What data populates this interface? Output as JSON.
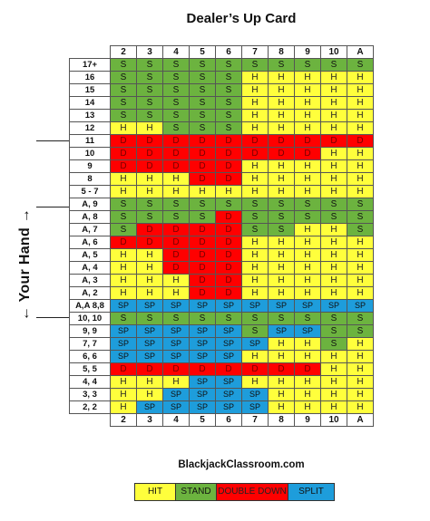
{
  "title": "Dealer’s Up Card",
  "side_label": "← Your Hand →",
  "site": "BlackjackClassroom.com",
  "columns": [
    "2",
    "3",
    "4",
    "5",
    "6",
    "7",
    "8",
    "9",
    "10",
    "A"
  ],
  "colors": {
    "H": "#ffff3c",
    "S": "#6cb33f",
    "D": "#ff0000",
    "SP": "#1e9ddb"
  },
  "rows": [
    {
      "label": "17+",
      "cells": [
        "S",
        "S",
        "S",
        "S",
        "S",
        "S",
        "S",
        "S",
        "S",
        "S"
      ]
    },
    {
      "label": "16",
      "cells": [
        "S",
        "S",
        "S",
        "S",
        "S",
        "H",
        "H",
        "H",
        "H",
        "H"
      ]
    },
    {
      "label": "15",
      "cells": [
        "S",
        "S",
        "S",
        "S",
        "S",
        "H",
        "H",
        "H",
        "H",
        "H"
      ]
    },
    {
      "label": "14",
      "cells": [
        "S",
        "S",
        "S",
        "S",
        "S",
        "H",
        "H",
        "H",
        "H",
        "H"
      ]
    },
    {
      "label": "13",
      "cells": [
        "S",
        "S",
        "S",
        "S",
        "S",
        "H",
        "H",
        "H",
        "H",
        "H"
      ]
    },
    {
      "label": "12",
      "cells": [
        "H",
        "H",
        "S",
        "S",
        "S",
        "H",
        "H",
        "H",
        "H",
        "H"
      ]
    },
    {
      "label": "11",
      "cells": [
        "D",
        "D",
        "D",
        "D",
        "D",
        "D",
        "D",
        "D",
        "D",
        "D"
      ]
    },
    {
      "label": "10",
      "cells": [
        "D",
        "D",
        "D",
        "D",
        "D",
        "D",
        "D",
        "D",
        "H",
        "H"
      ]
    },
    {
      "label": "9",
      "cells": [
        "D",
        "D",
        "D",
        "D",
        "D",
        "H",
        "H",
        "H",
        "H",
        "H"
      ]
    },
    {
      "label": "8",
      "cells": [
        "H",
        "H",
        "H",
        "D",
        "D",
        "H",
        "H",
        "H",
        "H",
        "H"
      ]
    },
    {
      "label": "5 - 7",
      "cells": [
        "H",
        "H",
        "H",
        "H",
        "H",
        "H",
        "H",
        "H",
        "H",
        "H"
      ]
    },
    {
      "label": "A, 9",
      "cells": [
        "S",
        "S",
        "S",
        "S",
        "S",
        "S",
        "S",
        "S",
        "S",
        "S"
      ]
    },
    {
      "label": "A, 8",
      "cells": [
        "S",
        "S",
        "S",
        "S",
        "D",
        "S",
        "S",
        "S",
        "S",
        "S"
      ]
    },
    {
      "label": "A, 7",
      "cells": [
        "S",
        "D",
        "D",
        "D",
        "D",
        "S",
        "S",
        "H",
        "H",
        "S"
      ]
    },
    {
      "label": "A, 6",
      "cells": [
        "D",
        "D",
        "D",
        "D",
        "D",
        "H",
        "H",
        "H",
        "H",
        "H"
      ]
    },
    {
      "label": "A, 5",
      "cells": [
        "H",
        "H",
        "D",
        "D",
        "D",
        "H",
        "H",
        "H",
        "H",
        "H"
      ]
    },
    {
      "label": "A, 4",
      "cells": [
        "H",
        "H",
        "D",
        "D",
        "D",
        "H",
        "H",
        "H",
        "H",
        "H"
      ]
    },
    {
      "label": "A, 3",
      "cells": [
        "H",
        "H",
        "H",
        "D",
        "D",
        "H",
        "H",
        "H",
        "H",
        "H"
      ]
    },
    {
      "label": "A, 2",
      "cells": [
        "H",
        "H",
        "H",
        "D",
        "D",
        "H",
        "H",
        "H",
        "H",
        "H"
      ]
    },
    {
      "label": "A,A 8,8",
      "cells": [
        "SP",
        "SP",
        "SP",
        "SP",
        "SP",
        "SP",
        "SP",
        "SP",
        "SP",
        "SP"
      ]
    },
    {
      "label": "10, 10",
      "cells": [
        "S",
        "S",
        "S",
        "S",
        "S",
        "S",
        "S",
        "S",
        "S",
        "S"
      ]
    },
    {
      "label": "9, 9",
      "cells": [
        "SP",
        "SP",
        "SP",
        "SP",
        "SP",
        "S",
        "SP",
        "SP",
        "S",
        "S"
      ]
    },
    {
      "label": "7, 7",
      "cells": [
        "SP",
        "SP",
        "SP",
        "SP",
        "SP",
        "SP",
        "H",
        "H",
        "S",
        "H"
      ]
    },
    {
      "label": "6, 6",
      "cells": [
        "SP",
        "SP",
        "SP",
        "SP",
        "SP",
        "H",
        "H",
        "H",
        "H",
        "H"
      ]
    },
    {
      "label": "5, 5",
      "cells": [
        "D",
        "D",
        "D",
        "D",
        "D",
        "D",
        "D",
        "D",
        "H",
        "H"
      ]
    },
    {
      "label": "4, 4",
      "cells": [
        "H",
        "H",
        "H",
        "SP",
        "SP",
        "H",
        "H",
        "H",
        "H",
        "H"
      ]
    },
    {
      "label": "3, 3",
      "cells": [
        "H",
        "H",
        "SP",
        "SP",
        "SP",
        "SP",
        "H",
        "H",
        "H",
        "H"
      ]
    },
    {
      "label": "2, 2",
      "cells": [
        "H",
        "SP",
        "SP",
        "SP",
        "SP",
        "SP",
        "H",
        "H",
        "H",
        "H"
      ]
    }
  ],
  "legend": [
    {
      "code": "H",
      "label": "HIT"
    },
    {
      "code": "S",
      "label": "STAND"
    },
    {
      "code": "D",
      "label": "DOUBLE DOWN"
    },
    {
      "code": "SP",
      "label": "SPLIT"
    }
  ]
}
